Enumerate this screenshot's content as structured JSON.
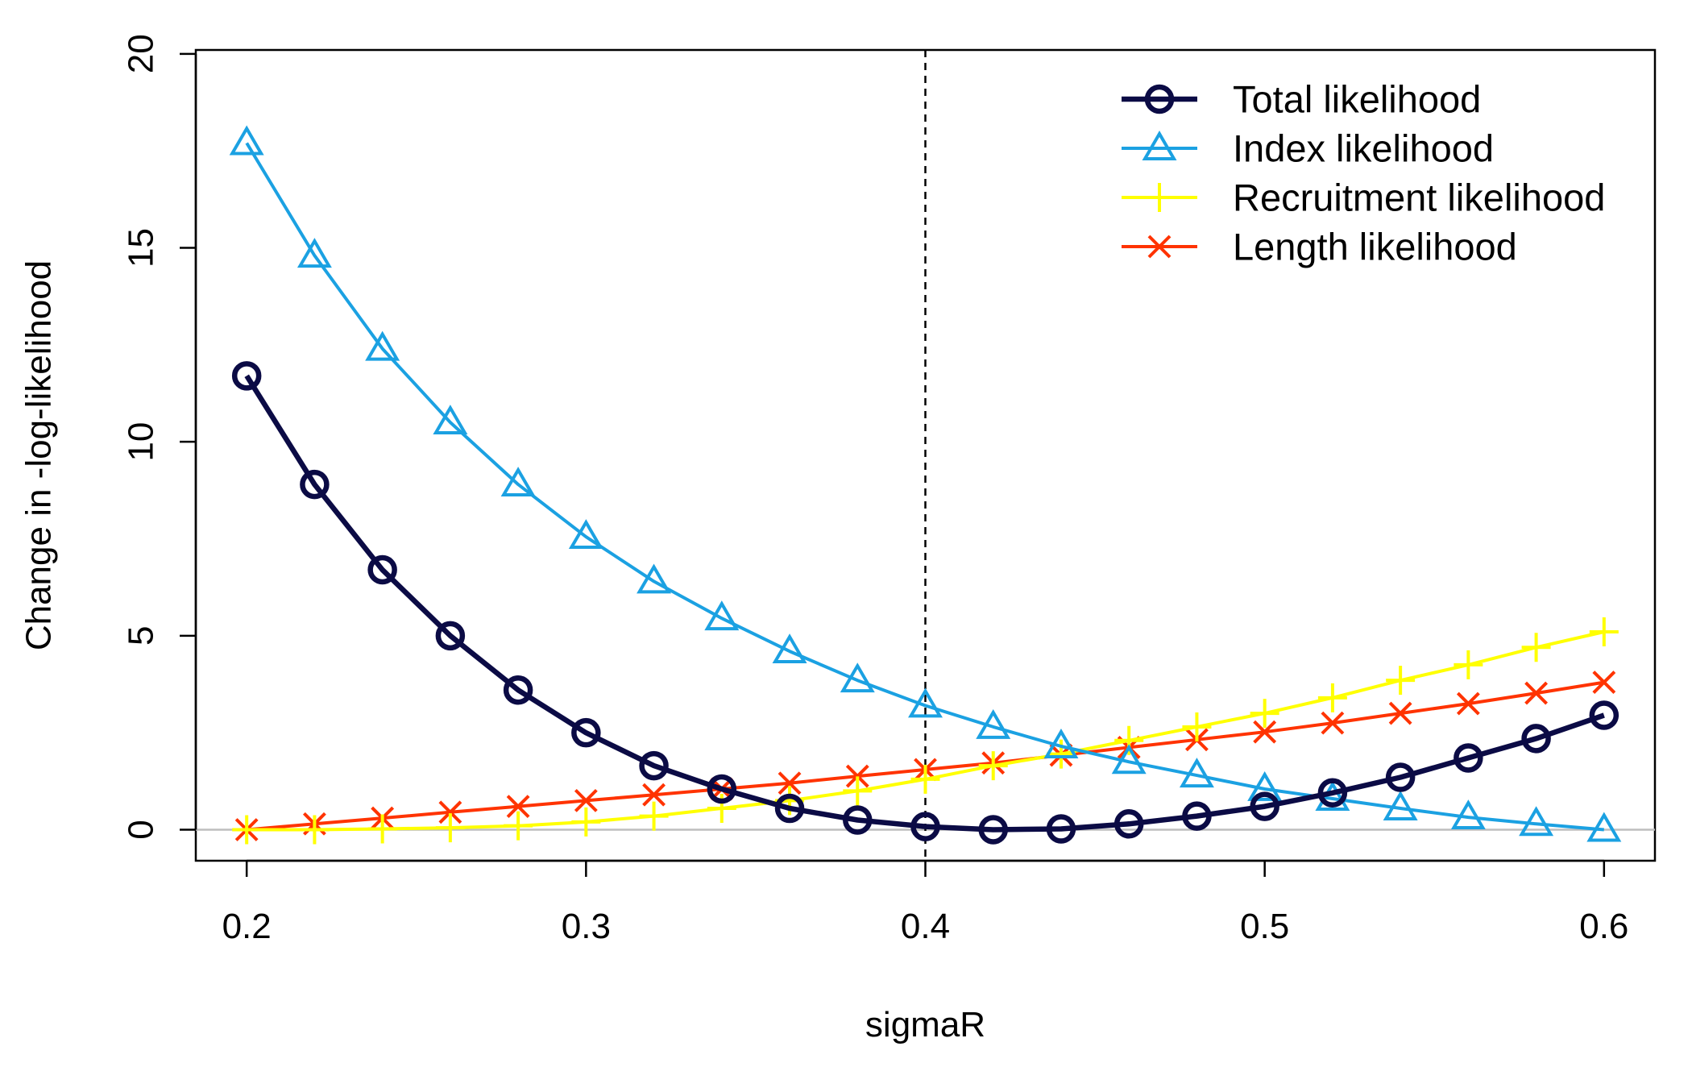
{
  "chart_data": {
    "type": "line",
    "title": "",
    "xlabel": "sigmaR",
    "ylabel": "Change in -log-likelihood",
    "xlim": [
      0.185,
      0.615
    ],
    "ylim": [
      -0.8,
      20.1
    ],
    "x_ticks": [
      "0.2",
      "0.3",
      "0.4",
      "0.5",
      "0.6"
    ],
    "y_ticks": [
      "0",
      "5",
      "10",
      "15",
      "20"
    ],
    "reference_vline": 0.4,
    "reference_hline": 0,
    "legend_position": "top-right",
    "x": [
      0.2,
      0.22,
      0.24,
      0.26,
      0.28,
      0.3,
      0.32,
      0.34,
      0.36,
      0.38,
      0.4,
      0.42,
      0.44,
      0.46,
      0.48,
      0.5,
      0.52,
      0.54,
      0.56,
      0.58,
      0.6
    ],
    "series": [
      {
        "name": "Total likelihood",
        "color": "#0b0b45",
        "marker": "circle",
        "values": [
          11.7,
          8.9,
          6.7,
          5.0,
          3.6,
          2.5,
          1.65,
          1.05,
          0.55,
          0.25,
          0.08,
          0.0,
          0.02,
          0.15,
          0.35,
          0.6,
          0.95,
          1.35,
          1.85,
          2.35,
          2.95
        ]
      },
      {
        "name": "Index likelihood",
        "color": "#1ba1e2",
        "marker": "triangle",
        "values": [
          17.7,
          14.8,
          12.4,
          10.5,
          8.9,
          7.55,
          6.4,
          5.45,
          4.6,
          3.85,
          3.2,
          2.65,
          2.15,
          1.75,
          1.4,
          1.05,
          0.8,
          0.55,
          0.32,
          0.15,
          0.0
        ]
      },
      {
        "name": "Recruitment likelihood",
        "color": "#ffff00",
        "marker": "plus",
        "values": [
          0.0,
          0.0,
          0.02,
          0.05,
          0.1,
          0.2,
          0.35,
          0.55,
          0.75,
          1.0,
          1.3,
          1.65,
          1.95,
          2.3,
          2.65,
          3.0,
          3.4,
          3.85,
          4.25,
          4.7,
          5.1
        ]
      },
      {
        "name": "Length likelihood",
        "color": "#ff3300",
        "marker": "x",
        "values": [
          0.0,
          0.15,
          0.3,
          0.45,
          0.6,
          0.75,
          0.9,
          1.05,
          1.2,
          1.38,
          1.55,
          1.72,
          1.92,
          2.12,
          2.32,
          2.52,
          2.75,
          3.0,
          3.25,
          3.52,
          3.8
        ]
      }
    ]
  }
}
